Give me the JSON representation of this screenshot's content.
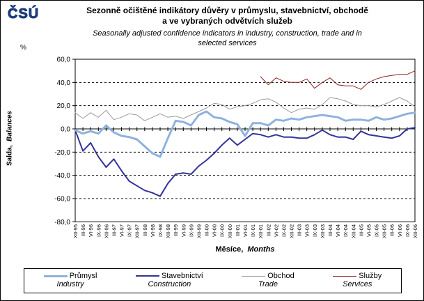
{
  "header": {
    "logo_text": "ČSÚ",
    "logo_color": "#1d3d7d",
    "title_lines": [
      "Sezonně očištěné indikátory důvěry v průmyslu, stavebnictví, obchodě",
      "a ve vybraných odvětvích služeb"
    ],
    "subtitle_lines": [
      "Seasonally adjusted confidence indicators in industry, construction, trade and in",
      "selected services"
    ]
  },
  "chart_data": {
    "type": "line",
    "title": "Sezonně očištěné indikátory důvěry v průmyslu, stavebnictví, obchodě a ve vybraných odvětvích služeb",
    "subtitle": "Seasonally adjusted confidence indicators in industry, construction, trade and in selected services",
    "unit_label": "%",
    "ylabel_cs": "Salda,",
    "ylabel_en": "Balances",
    "xlabel_cs": "Měsíce,",
    "xlabel_en": "Months",
    "ylim": [
      -80,
      60
    ],
    "ytick_step": 20,
    "ytick_labels": [
      "60,0",
      "40,0",
      "20,0",
      "0,0",
      "-20,0",
      "-40,0",
      "-60,0",
      "-80,0"
    ],
    "grid": "horizontal-dashed",
    "legend_position": "bottom",
    "sampling": "quarterly",
    "categories": [
      "XII-95",
      "III-96",
      "VI-96",
      "IX-96",
      "XII-96",
      "III-97",
      "VI-97",
      "IX-97",
      "XII-97",
      "III-98",
      "VI-98",
      "IX-98",
      "XII-98",
      "III-99",
      "VI-99",
      "IX-99",
      "XII-99",
      "III-00",
      "VI-00",
      "IX-00",
      "XII-00",
      "III-01",
      "VI-01",
      "IX-01",
      "XII-01",
      "III-02",
      "VI-02",
      "IX-02",
      "XII-02",
      "III-03",
      "VI-03",
      "IX-03",
      "XII-03",
      "III-04",
      "VI-04",
      "IX-04",
      "XII-04",
      "III-05",
      "VI-05",
      "IX-05",
      "XII-05",
      "III-06",
      "VI-06",
      "IX-06",
      "XII-06"
    ],
    "series": [
      {
        "id": "industry",
        "name_cs": "Průmysl",
        "name_en": "Industry",
        "color": "#8FB2DE",
        "width": 3,
        "values": [
          -1,
          -4,
          -2,
          -4,
          3,
          -3,
          -6,
          -7,
          -9,
          -15,
          -21,
          -24,
          -8,
          7,
          6,
          3,
          12,
          15,
          10,
          9,
          6,
          4,
          -6,
          5,
          5,
          3,
          8,
          7,
          9,
          8,
          10,
          11,
          12,
          11,
          10,
          7,
          8,
          8,
          7,
          10,
          8,
          9,
          11,
          13,
          14
        ]
      },
      {
        "id": "construction",
        "name_cs": "Stavebnictví",
        "name_en": "Construction",
        "color": "#333399",
        "width": 2,
        "values": [
          -1,
          -19,
          -12,
          -24,
          -33,
          -26,
          -36,
          -45,
          -49,
          -53,
          -55,
          -58,
          -47,
          -39,
          -38,
          -39,
          -32,
          -27,
          -21,
          -14,
          -8,
          -14,
          -9,
          -4,
          -5,
          -7,
          -5,
          -7,
          -7,
          -8,
          -8,
          -5,
          -1,
          -5,
          -7,
          -7,
          -9,
          -2,
          -5,
          -6,
          -7,
          -8,
          -6,
          0,
          1
        ]
      },
      {
        "id": "trade",
        "name_cs": "Obchod",
        "name_en": "Trade",
        "color": "#9B9B9B",
        "width": 1,
        "values": [
          14,
          9,
          14,
          10,
          16,
          8,
          10,
          13,
          12,
          7,
          10,
          13,
          10,
          11,
          9,
          12,
          15,
          18,
          22,
          21,
          17,
          19,
          20,
          22,
          25,
          26,
          23,
          18,
          14,
          17,
          18,
          17,
          21,
          27,
          26,
          24,
          21,
          20,
          20,
          19,
          21,
          24,
          27,
          24,
          19
        ]
      },
      {
        "id": "services",
        "name_cs": "Služby",
        "name_en": "Services",
        "color": "#8B2222",
        "width": 1,
        "values": [
          null,
          null,
          null,
          null,
          null,
          null,
          null,
          null,
          null,
          null,
          null,
          null,
          null,
          null,
          null,
          null,
          null,
          null,
          null,
          null,
          null,
          null,
          null,
          null,
          45,
          38,
          44,
          41,
          40,
          40,
          43,
          35,
          40,
          44,
          38,
          37,
          37,
          34,
          40,
          43,
          45,
          46,
          47,
          47,
          50
        ]
      }
    ]
  }
}
